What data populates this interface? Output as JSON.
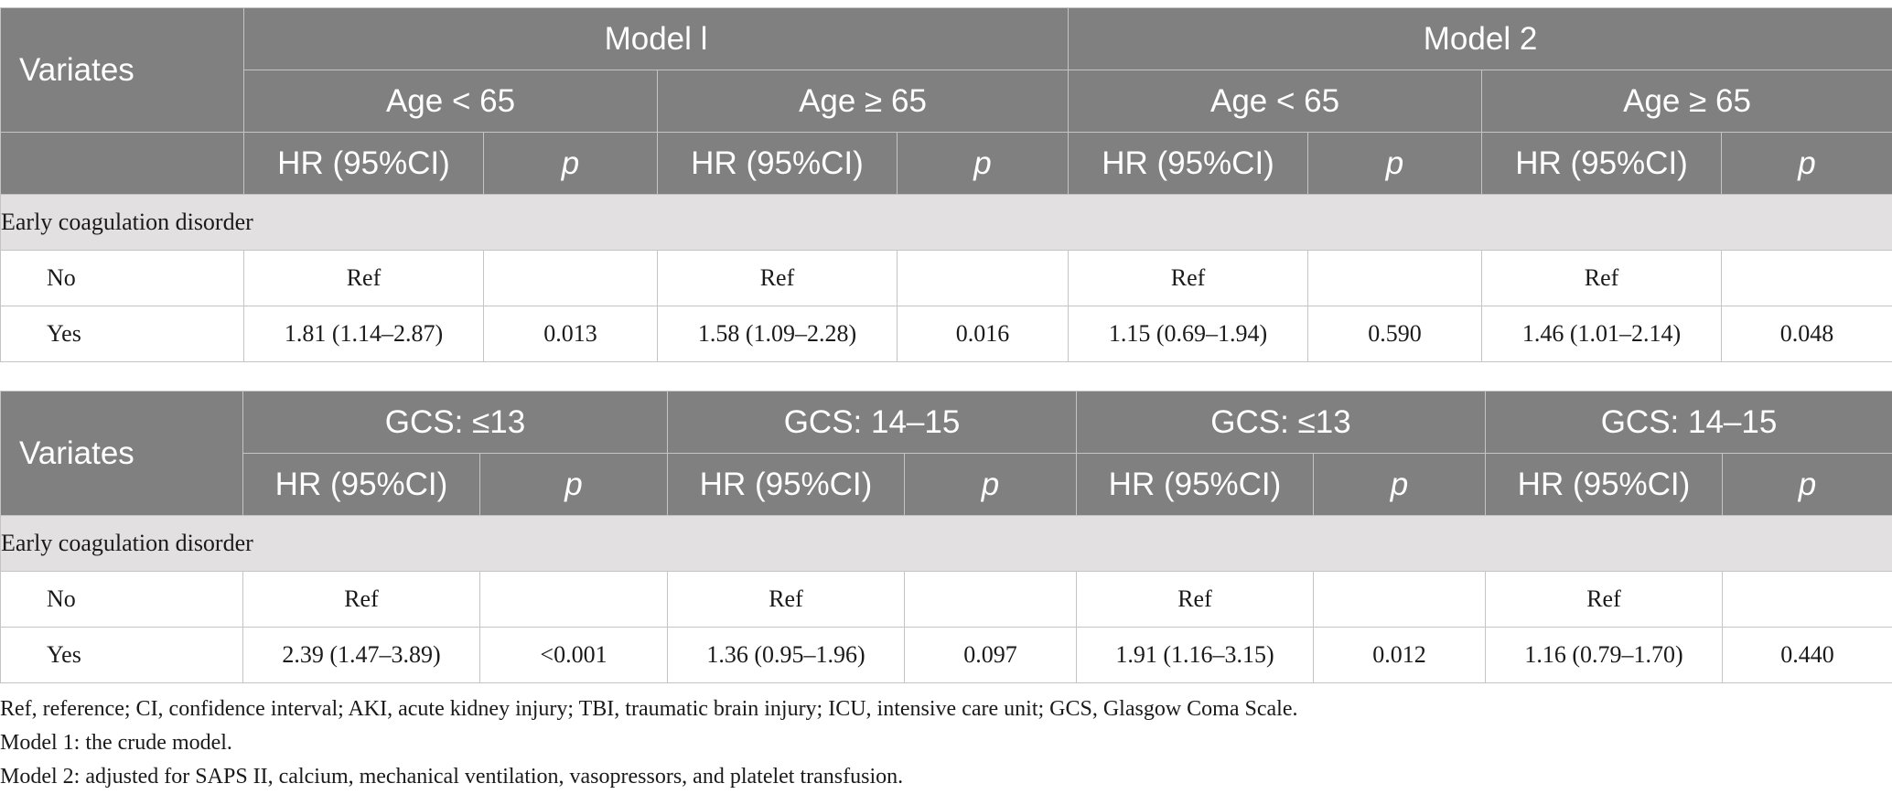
{
  "table1": {
    "variates_label": "Variates",
    "models": [
      "Model l",
      "Model 2"
    ],
    "age_groups": [
      "Age < 65",
      "Age ≥ 65",
      "Age < 65",
      "Age ≥ 65"
    ],
    "col_hr": "HR (95%CI)",
    "col_p": "p",
    "section": "Early coagulation disorder",
    "rows": [
      {
        "label": "No",
        "cells": [
          "Ref",
          "",
          "Ref",
          "",
          "Ref",
          "",
          "Ref",
          ""
        ]
      },
      {
        "label": "Yes",
        "cells": [
          "1.81 (1.14–2.87)",
          "0.013",
          "1.58 (1.09–2.28)",
          "0.016",
          "1.15 (0.69–1.94)",
          "0.590",
          "1.46 (1.01–2.14)",
          "0.048"
        ]
      }
    ]
  },
  "table2": {
    "variates_label": "Variates",
    "gcs_groups": [
      "GCS: ≤13",
      "GCS: 14–15",
      "GCS: ≤13",
      "GCS: 14–15"
    ],
    "col_hr": "HR (95%CI)",
    "col_p": "p",
    "section": "Early coagulation disorder",
    "rows": [
      {
        "label": "No",
        "cells": [
          "Ref",
          "",
          "Ref",
          "",
          "Ref",
          "",
          "Ref",
          ""
        ]
      },
      {
        "label": "Yes",
        "cells": [
          "2.39 (1.47–3.89)",
          "<0.001",
          "1.36 (0.95–1.96)",
          "0.097",
          "1.91 (1.16–3.15)",
          "0.012",
          "1.16 (0.79–1.70)",
          "0.440"
        ]
      }
    ]
  },
  "footnotes": [
    "Ref, reference; CI, confidence interval; AKI, acute kidney injury; TBI, traumatic brain injury; ICU, intensive care unit; GCS, Glasgow Coma Scale.",
    "Model 1: the crude model.",
    "Model 2: adjusted for SAPS II, calcium, mechanical ventilation, vasopressors, and platelet transfusion."
  ],
  "colors": {
    "header_bg": "#808080",
    "section_bg": "#e2e0e1",
    "border": "#c4c4c4"
  }
}
